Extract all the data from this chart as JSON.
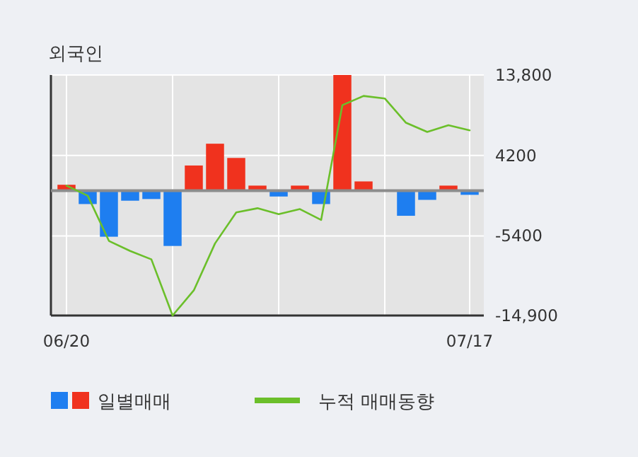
{
  "chart_data": {
    "type": "bar",
    "title": "외국인",
    "categories": [
      "06/20",
      null,
      null,
      null,
      null,
      null,
      null,
      null,
      null,
      null,
      null,
      null,
      null,
      null,
      null,
      null,
      null,
      null,
      null,
      "07/17"
    ],
    "series": [
      {
        "name": "일별매매",
        "colors": [
          "#f0321e",
          "#1e7ef0",
          "#1e7ef0",
          "#1e7ef0",
          "#1e7ef0",
          "#1e7ef0",
          "#f0321e",
          "#f0321e",
          "#f0321e",
          "#f0321e",
          "#1e7ef0",
          "#f0321e",
          "#1e7ef0",
          "#f0321e",
          "#f0321e",
          "#f0321e",
          "#1e7ef0",
          "#1e7ef0",
          "#f0321e",
          "#1e7ef0"
        ],
        "values": [
          700,
          -1600,
          -5500,
          -1200,
          -1000,
          -6600,
          3000,
          5600,
          3900,
          600,
          -700,
          600,
          -1600,
          13800,
          1100,
          0,
          -3000,
          -1100,
          600,
          -500
        ]
      },
      {
        "name": "누적 매매동향",
        "type": "line",
        "color": "#6bbf2a",
        "values": [
          600,
          -600,
          -6000,
          -7200,
          -8200,
          -14900,
          -11900,
          -6300,
          -2600,
          -2100,
          -2800,
          -2200,
          -3500,
          10200,
          11300,
          11000,
          8100,
          7000,
          7800,
          7200
        ]
      }
    ],
    "ylim": [
      -14900,
      13800
    ],
    "yticks": [
      {
        "value": 13800,
        "label": "13,800"
      },
      {
        "value": 4200,
        "label": "4200"
      },
      {
        "value": -5400,
        "label": "-5400"
      },
      {
        "value": -14900,
        "label": "-14,900"
      }
    ],
    "ref_lines": [
      {
        "axis": "y",
        "value": 0,
        "color": "#8c8c8c"
      }
    ],
    "grid": true,
    "legend": "bottom"
  }
}
